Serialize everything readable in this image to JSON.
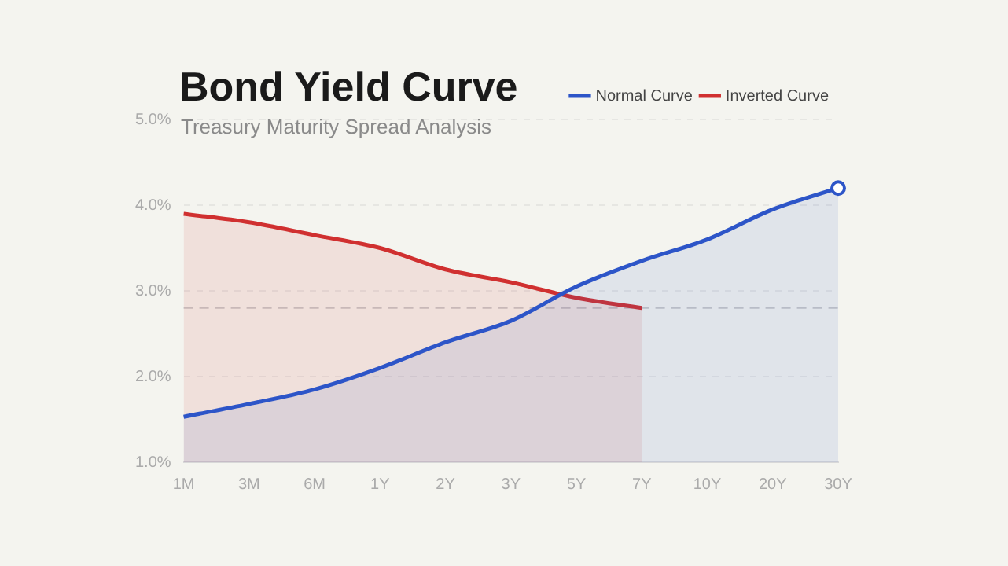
{
  "chart_data": {
    "type": "area",
    "title": "Bond Yield Curve",
    "subtitle": "Treasury Maturity Spread Analysis",
    "categories": [
      "1M",
      "3M",
      "6M",
      "1Y",
      "2Y",
      "3Y",
      "5Y",
      "7Y",
      "10Y",
      "20Y",
      "30Y"
    ],
    "series": [
      {
        "name": "Normal Curve",
        "color": "#2d55c8",
        "values": [
          1.53,
          1.68,
          1.85,
          2.1,
          2.4,
          2.65,
          3.05,
          3.35,
          3.6,
          3.95,
          4.2
        ]
      },
      {
        "name": "Inverted Curve",
        "color": "#d03030",
        "values": [
          3.9,
          3.8,
          3.65,
          3.5,
          3.25,
          3.1,
          2.92,
          2.8,
          null,
          null,
          null
        ]
      }
    ],
    "ylim": [
      1,
      5
    ],
    "yticks": [
      {
        "value": 1,
        "label": "1.0%"
      },
      {
        "value": 2,
        "label": "2.0%"
      },
      {
        "value": 3,
        "label": "3.0%"
      },
      {
        "value": 4,
        "label": "4.0%"
      },
      {
        "value": 5,
        "label": "5.0%"
      }
    ],
    "ref_lines": [
      {
        "axis": "y",
        "value": 2.8,
        "color": "#c8c8c8",
        "line_style": "dashed"
      }
    ],
    "grid": "y",
    "legend": "top right",
    "marker": "none",
    "line_style": "solid"
  }
}
